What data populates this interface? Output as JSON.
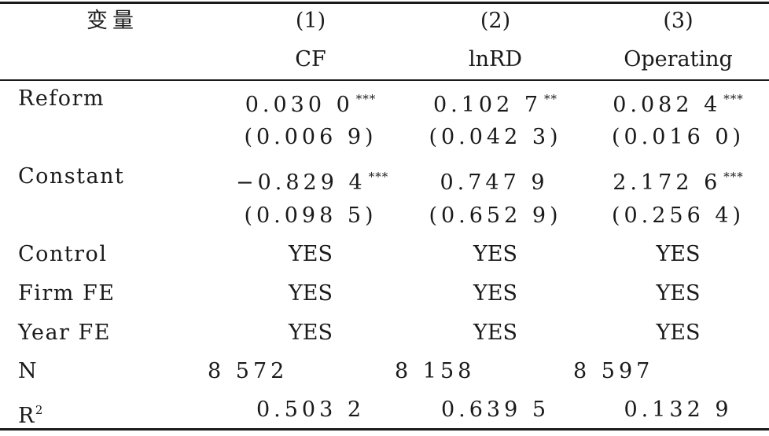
{
  "header": {
    "variable_label": "变量",
    "columns": [
      {
        "number": "(1)",
        "name": "CF"
      },
      {
        "number": "(2)",
        "name": "lnRD"
      },
      {
        "number": "(3)",
        "name": "Operating"
      }
    ]
  },
  "rows": {
    "reform": {
      "label": "Reform",
      "values": [
        "0.030 0",
        "0.102 7",
        "0.082 4"
      ],
      "stars": [
        "***",
        "**",
        "***"
      ]
    },
    "reform_se": {
      "values": [
        "(0.006 9)",
        "(0.042 3)",
        "(0.016 0)"
      ]
    },
    "constant": {
      "label": "Constant",
      "values": [
        "−0.829 4",
        "0.747 9",
        "2.172 6"
      ],
      "stars": [
        "***",
        "",
        "***"
      ]
    },
    "constant_se": {
      "values": [
        "(0.098 5)",
        "(0.652 9)",
        "(0.256 4)"
      ]
    },
    "control": {
      "label": "Control",
      "values": [
        "YES",
        "YES",
        "YES"
      ]
    },
    "firm_fe": {
      "label": "Firm FE",
      "values": [
        "YES",
        "YES",
        "YES"
      ]
    },
    "year_fe": {
      "label": "Year FE",
      "values": [
        "YES",
        "YES",
        "YES"
      ]
    },
    "n": {
      "label": "N",
      "values": [
        "8 572",
        "8 158",
        "8 597"
      ]
    },
    "r2": {
      "label": "R",
      "label_sup": "2",
      "values": [
        "0.503 2",
        "0.639 5",
        "0.132 9"
      ]
    }
  }
}
